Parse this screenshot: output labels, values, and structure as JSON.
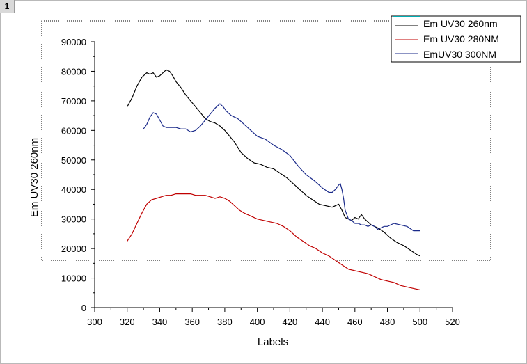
{
  "page": {
    "number": "1"
  },
  "chart_data": {
    "type": "line",
    "title": "",
    "xlabel": "Labels",
    "ylabel": "Em UV30 260nm",
    "xlim": [
      300,
      520
    ],
    "ylim": [
      0,
      90000
    ],
    "xticks": [
      300,
      320,
      340,
      360,
      380,
      400,
      420,
      440,
      460,
      480,
      500,
      520
    ],
    "yticks": [
      0,
      10000,
      20000,
      30000,
      40000,
      50000,
      60000,
      70000,
      80000,
      90000
    ],
    "xtick_labels": [
      "300",
      "320",
      "340",
      "360",
      "380",
      "400",
      "420",
      "440",
      "460",
      "480",
      "500",
      "520"
    ],
    "ytick_labels": [
      "0",
      "10000",
      "20000",
      "30000",
      "40000",
      "50000",
      "60000",
      "70000",
      "80000",
      "90000"
    ],
    "grid": false,
    "legend_position": "top-right",
    "legend_swatch_line_color": "#00e5ee",
    "series": [
      {
        "name": "Em UV30 260nm",
        "color": "#000000",
        "x": [
          320,
          323,
          326,
          329,
          332,
          334,
          336,
          338,
          340,
          342,
          344,
          346,
          348,
          350,
          353,
          356,
          359,
          362,
          365,
          368,
          371,
          374,
          377,
          380,
          383,
          386,
          390,
          394,
          398,
          402,
          406,
          410,
          414,
          418,
          422,
          426,
          430,
          434,
          438,
          442,
          446,
          450,
          452,
          454,
          456,
          458,
          460,
          462,
          464,
          466,
          468,
          470,
          474,
          478,
          482,
          486,
          490,
          494,
          498,
          500
        ],
        "y": [
          68000,
          71000,
          75000,
          78000,
          79500,
          79000,
          79500,
          78000,
          78500,
          79500,
          80500,
          80000,
          78500,
          76500,
          74500,
          72000,
          70000,
          68000,
          66000,
          64000,
          63000,
          62500,
          61500,
          60000,
          58000,
          56000,
          52500,
          50500,
          49000,
          48500,
          47500,
          47000,
          45500,
          44000,
          42000,
          40000,
          38000,
          36500,
          35000,
          34500,
          34000,
          35000,
          33000,
          30500,
          30000,
          29500,
          30500,
          30000,
          31500,
          30000,
          29000,
          28000,
          27000,
          25500,
          23500,
          22000,
          21000,
          19500,
          18000,
          17500
        ]
      },
      {
        "name": "Em UV30 280NM",
        "color": "#c00000",
        "x": [
          320,
          323,
          326,
          329,
          332,
          335,
          338,
          341,
          344,
          347,
          350,
          353,
          356,
          359,
          362,
          365,
          368,
          371,
          374,
          377,
          380,
          383,
          386,
          389,
          392,
          396,
          400,
          404,
          408,
          412,
          416,
          420,
          424,
          428,
          432,
          436,
          440,
          444,
          448,
          452,
          456,
          460,
          464,
          468,
          472,
          476,
          480,
          484,
          488,
          492,
          496,
          500
        ],
        "y": [
          22500,
          25000,
          28500,
          32000,
          35000,
          36500,
          37000,
          37500,
          38000,
          38000,
          38500,
          38500,
          38500,
          38500,
          38000,
          38000,
          38000,
          37500,
          37000,
          37500,
          37000,
          36000,
          34500,
          33000,
          32000,
          31000,
          30000,
          29500,
          29000,
          28500,
          27500,
          26000,
          24000,
          22500,
          21000,
          20000,
          18500,
          17500,
          16000,
          14500,
          13000,
          12500,
          12000,
          11500,
          10500,
          9500,
          9000,
          8500,
          7500,
          7000,
          6500,
          6000
        ]
      },
      {
        "name": "EmUV30 300NM",
        "color": "#1a2a8a",
        "x": [
          330,
          332,
          334,
          336,
          338,
          340,
          342,
          344,
          346,
          348,
          350,
          353,
          356,
          359,
          362,
          365,
          368,
          371,
          374,
          377,
          379,
          381,
          384,
          388,
          392,
          396,
          400,
          405,
          410,
          415,
          420,
          425,
          430,
          435,
          440,
          444,
          446,
          448,
          450,
          451,
          452,
          453,
          454,
          456,
          458,
          460,
          462,
          464,
          466,
          468,
          470,
          472,
          474,
          476,
          478,
          480,
          484,
          488,
          492,
          496,
          500
        ],
        "y": [
          60500,
          62000,
          64500,
          66000,
          65500,
          63500,
          61500,
          61000,
          61000,
          61000,
          61000,
          60500,
          60500,
          59500,
          60000,
          61500,
          63500,
          65500,
          67500,
          69000,
          68000,
          66500,
          65000,
          64000,
          62000,
          60000,
          58000,
          57000,
          55000,
          53500,
          51500,
          48000,
          45000,
          43000,
          40500,
          39000,
          39000,
          40000,
          41500,
          42000,
          40000,
          37000,
          33000,
          30000,
          29500,
          28500,
          28500,
          28000,
          28000,
          27500,
          28000,
          27500,
          26500,
          27000,
          27500,
          27500,
          28500,
          28000,
          27500,
          26000,
          26000
        ]
      }
    ]
  }
}
